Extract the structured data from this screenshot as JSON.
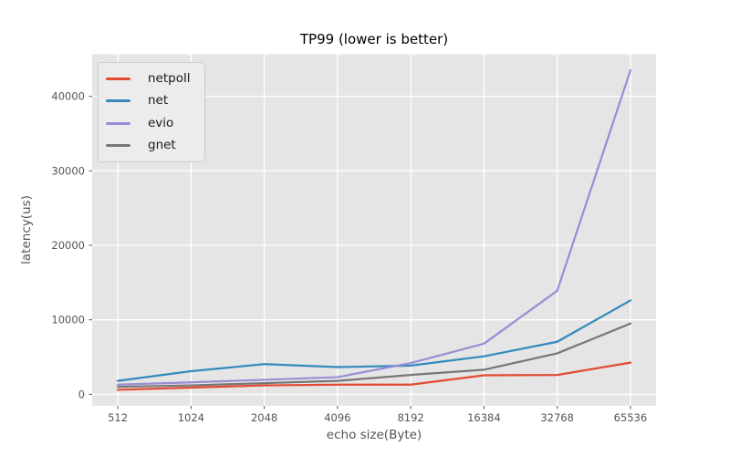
{
  "figure": {
    "background": "#ffffff"
  },
  "chart_data": {
    "type": "line",
    "title": "TP99 (lower is better)",
    "xlabel": "echo size(Byte)",
    "ylabel": "latency(us)",
    "categories": [
      "512",
      "1024",
      "2048",
      "4096",
      "8192",
      "16384",
      "32768",
      "65536"
    ],
    "y_ticks": [
      0,
      10000,
      20000,
      30000,
      40000
    ],
    "ylim": [
      -1550,
      45650
    ],
    "grid": true,
    "plot_background": "#e5e5e5",
    "grid_color": "#ffffff",
    "tick_label_color": "#555555",
    "legend": {
      "position": "upper left",
      "background": "#ececec",
      "border_color": "#cccccc"
    },
    "series": [
      {
        "name": "netpoll",
        "color": "#e24a33",
        "values": [
          600,
          900,
          1200,
          1300,
          1300,
          2550,
          2600,
          4250
        ]
      },
      {
        "name": "net",
        "color": "#348abd",
        "values": [
          1800,
          3100,
          4050,
          3650,
          3850,
          5100,
          7050,
          12600
        ]
      },
      {
        "name": "evio",
        "color": "#988ed5",
        "values": [
          1300,
          1600,
          1950,
          2300,
          4200,
          6800,
          13900,
          43500
        ]
      },
      {
        "name": "gnet",
        "color": "#777777",
        "values": [
          1000,
          1200,
          1500,
          1800,
          2600,
          3300,
          5500,
          9500
        ]
      }
    ]
  }
}
